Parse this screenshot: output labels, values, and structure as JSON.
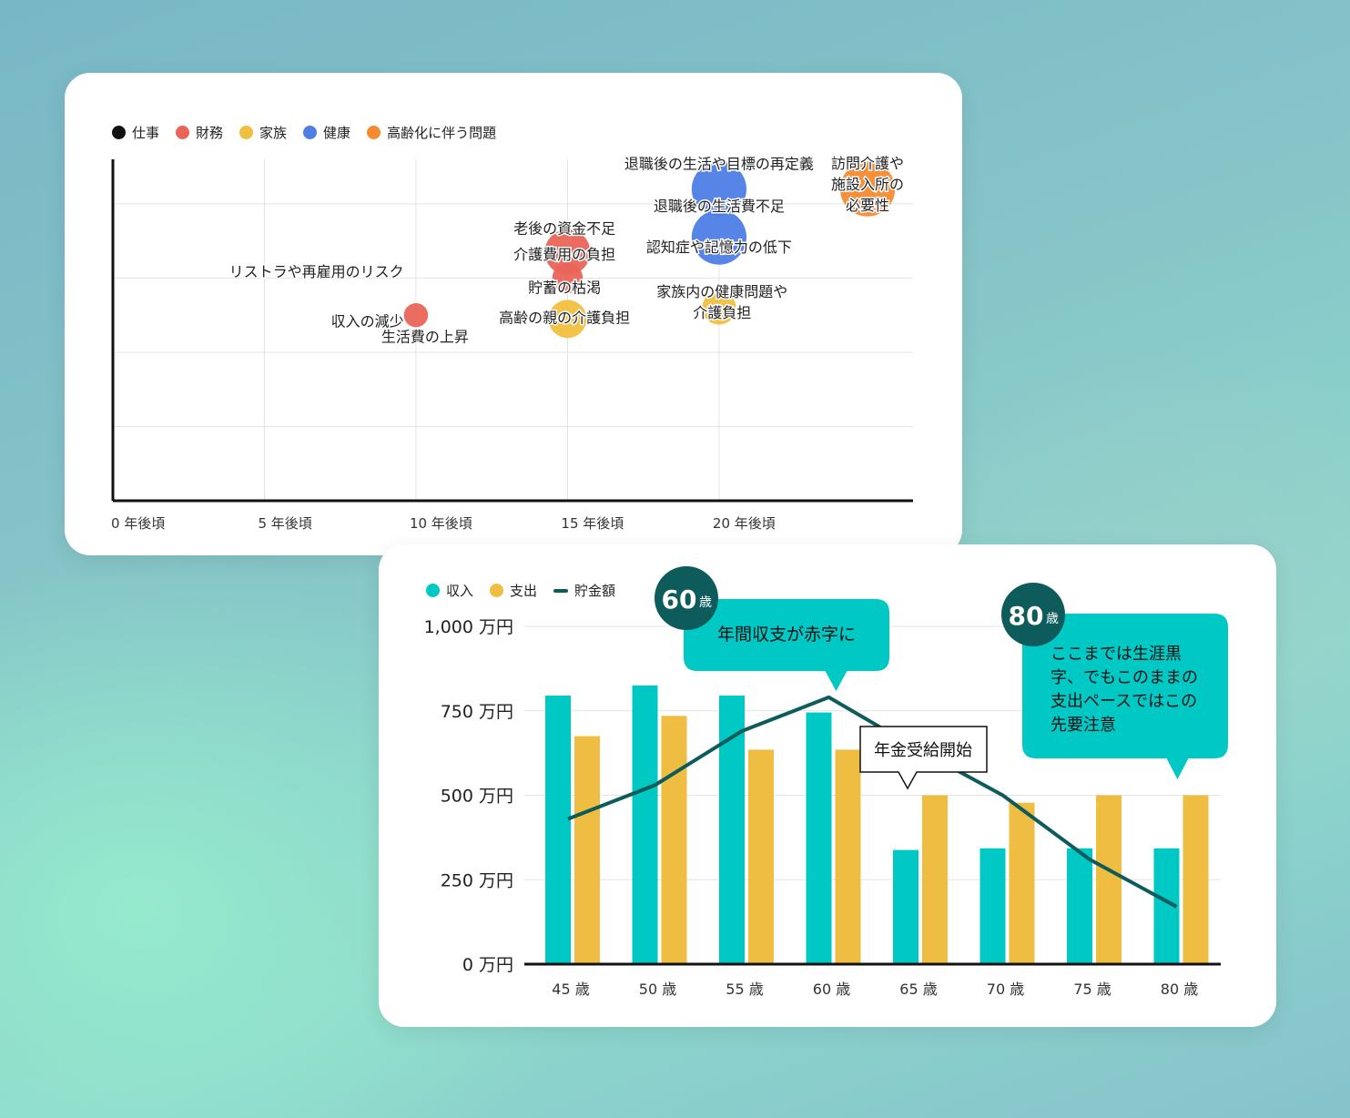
{
  "colors": {
    "shigoto": "#111111",
    "zaimu": "#ea6458",
    "kazoku": "#f1bf3f",
    "kenko": "#4e7ee6",
    "koreika": "#f58a2f",
    "income": "#00c8c4",
    "expense": "#efbd42",
    "savings": "#0d5b5b",
    "callout_teal": "#00c8c4",
    "badge": "#0d5b5b"
  },
  "chart_data": [
    {
      "type": "scatter",
      "legend": [
        {
          "name": "仕事",
          "color_key": "shigoto"
        },
        {
          "name": "財務",
          "color_key": "zaimu"
        },
        {
          "name": "家族",
          "color_key": "kazoku"
        },
        {
          "name": "健康",
          "color_key": "kenko"
        },
        {
          "name": "高齢化に伴う問題",
          "color_key": "koreika"
        }
      ],
      "x_ticks": [
        {
          "value": 0,
          "label": "0 年後頃"
        },
        {
          "value": 5,
          "label": "5 年後頃"
        },
        {
          "value": 10,
          "label": "10 年後頃"
        },
        {
          "value": 15,
          "label": "15 年後頃"
        },
        {
          "value": 20,
          "label": "20 年後頃"
        }
      ],
      "xlim": [
        0,
        26.4
      ],
      "ylim": [
        0,
        4.6
      ],
      "grid": true,
      "legend_position": "top-left",
      "bubbles": [
        {
          "category": "zaimu",
          "x": 10,
          "y": 2.5,
          "size": 0.28
        },
        {
          "category": "zaimu",
          "x": 15,
          "y": 3.35,
          "size": 1.0
        },
        {
          "category": "zaimu",
          "x": 15,
          "y": 3.0,
          "size": 0.45
        },
        {
          "category": "kazoku",
          "x": 15,
          "y": 2.45,
          "size": 0.7
        },
        {
          "category": "kazoku",
          "x": 20,
          "y": 2.6,
          "size": 0.55
        },
        {
          "category": "kenko",
          "x": 20,
          "y": 4.2,
          "size": 1.45
        },
        {
          "category": "kenko",
          "x": 20,
          "y": 3.55,
          "size": 1.45
        },
        {
          "category": "koreika",
          "x": 24.9,
          "y": 4.2,
          "size": 1.45
        }
      ],
      "annotations": [
        {
          "lines": [
            "リストラや再雇用のリスク"
          ],
          "x": 9.6,
          "y": 3.02,
          "anchor": "end"
        },
        {
          "lines": [
            "収入の減少"
          ],
          "x": 9.6,
          "y": 2.35,
          "anchor": "end"
        },
        {
          "lines": [
            "生活費の上昇"
          ],
          "x": 10.3,
          "y": 2.14,
          "anchor": "middle"
        },
        {
          "lines": [
            "老後の資金不足"
          ],
          "x": 14.9,
          "y": 3.6,
          "anchor": "middle"
        },
        {
          "lines": [
            "介護費用の負担"
          ],
          "x": 14.9,
          "y": 3.25,
          "anchor": "middle"
        },
        {
          "lines": [
            "貯蓄の枯渇"
          ],
          "x": 14.9,
          "y": 2.8,
          "anchor": "middle"
        },
        {
          "lines": [
            "高齢の親の介護負担"
          ],
          "x": 14.9,
          "y": 2.4,
          "anchor": "middle"
        },
        {
          "lines": [
            "退職後の生活や目標の再定義"
          ],
          "x": 20.0,
          "y": 4.47,
          "anchor": "middle"
        },
        {
          "lines": [
            "退職後の生活費不足"
          ],
          "x": 20.0,
          "y": 3.9,
          "anchor": "middle"
        },
        {
          "lines": [
            "認知症や記憶力の低下"
          ],
          "x": 20.0,
          "y": 3.35,
          "anchor": "middle"
        },
        {
          "lines": [
            "家族内の健康問題や",
            "介護負担"
          ],
          "x": 20.1,
          "y": 2.75,
          "anchor": "middle"
        },
        {
          "lines": [
            "訪問介護や",
            "施設入所の",
            "必要性"
          ],
          "x": 24.9,
          "y": 4.48,
          "anchor": "middle"
        }
      ]
    },
    {
      "type": "bar",
      "categories": [
        "45 歳",
        "50 歳",
        "55 歳",
        "60 歳",
        "65 歳",
        "70 歳",
        "75 歳",
        "80 歳"
      ],
      "series": [
        {
          "name": "収入",
          "kind": "bar",
          "color_key": "income",
          "values": [
            795,
            825,
            795,
            745,
            338,
            343,
            343,
            343
          ]
        },
        {
          "name": "支出",
          "kind": "bar",
          "color_key": "expense",
          "values": [
            675,
            735,
            635,
            635,
            500,
            478,
            500,
            500
          ]
        },
        {
          "name": "貯金額",
          "kind": "line",
          "color_key": "savings",
          "values": [
            430,
            530,
            690,
            790,
            640,
            500,
            310,
            170
          ]
        }
      ],
      "y_ticks": [
        {
          "value": 0,
          "label": "0 万円"
        },
        {
          "value": 250,
          "label": "250 万円"
        },
        {
          "value": 500,
          "label": "500 万円"
        },
        {
          "value": 750,
          "label": "750 万円"
        },
        {
          "value": 1000,
          "label": "1,000 万円"
        }
      ],
      "ylim": [
        0,
        1000
      ],
      "grid": true,
      "legend_position": "top-left",
      "callouts": [
        {
          "age": "60",
          "age_suffix": "歳",
          "lines": [
            "年間収支が赤字に"
          ],
          "category": "60 歳"
        },
        {
          "age": "80",
          "age_suffix": "歳",
          "lines": [
            "ここまでは生涯黒",
            "字、でもこのままの",
            "支出ペースではこの",
            "先要注意"
          ],
          "category": "80 歳"
        }
      ],
      "note": {
        "text": "年金受給開始",
        "category": "65 歳"
      }
    }
  ]
}
